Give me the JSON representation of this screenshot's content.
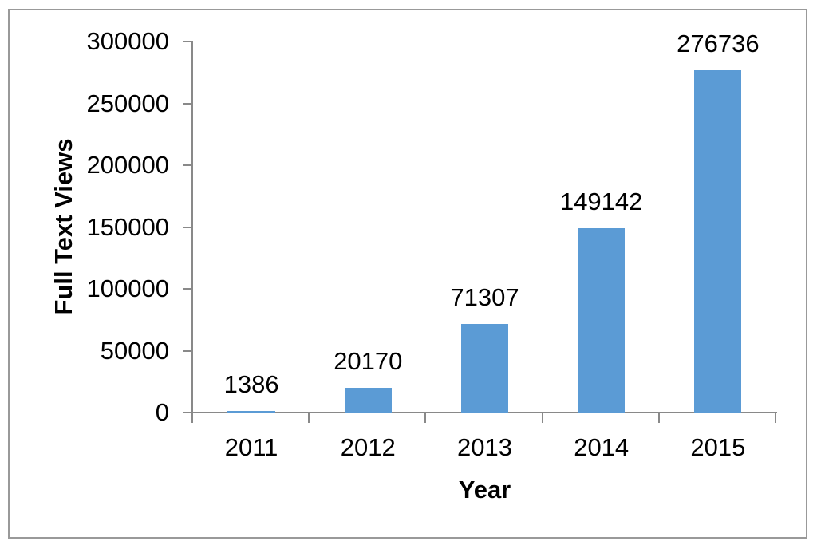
{
  "chart_data": {
    "type": "bar",
    "title": "",
    "xlabel": "Year",
    "ylabel": "Full Text Views",
    "categories": [
      "2011",
      "2012",
      "2013",
      "2014",
      "2015"
    ],
    "values": [
      1386,
      20170,
      71307,
      149142,
      276736
    ],
    "bar_labels": [
      "1386",
      "20170",
      "71307",
      "149142",
      "276736"
    ],
    "ylim": [
      0,
      300000
    ],
    "y_ticks": [
      0,
      50000,
      100000,
      150000,
      200000,
      250000,
      300000
    ],
    "y_tick_labels": [
      "0",
      "50000",
      "100000",
      "150000",
      "200000",
      "250000",
      "300000"
    ],
    "grid": false,
    "legend_position": "none",
    "colors": {
      "bar": "#5B9BD5",
      "axis": "#898989",
      "text": "#000000",
      "frame_border": "#999999",
      "background": "#FFFFFF"
    }
  }
}
